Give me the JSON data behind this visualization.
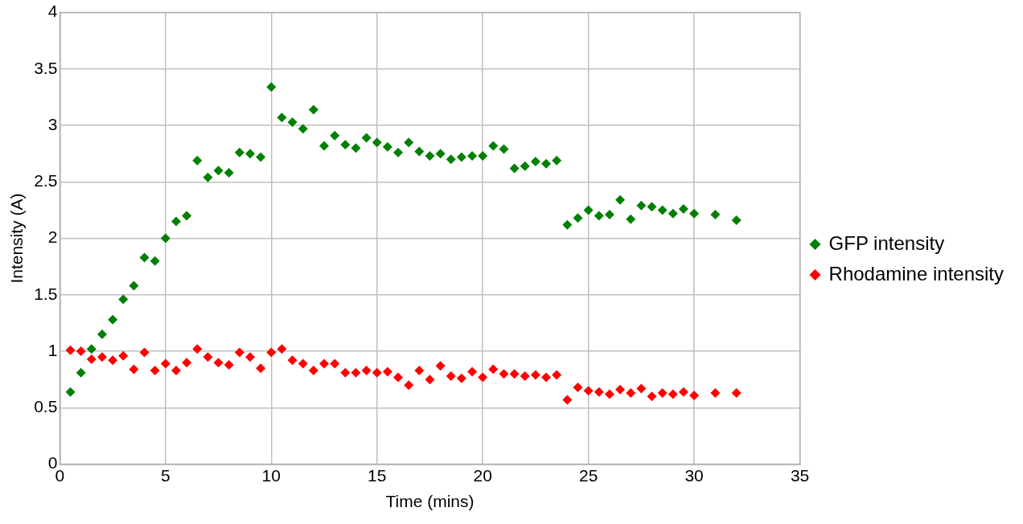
{
  "chart_data": {
    "type": "scatter",
    "xlabel": "Time (mins)",
    "ylabel": "Intensity (A)",
    "x": [
      0.5,
      1,
      1.5,
      2,
      2.5,
      3,
      3.5,
      4,
      4.5,
      5,
      5.5,
      6,
      6.5,
      7,
      7.5,
      8,
      8.5,
      9,
      9.5,
      10,
      10.5,
      11,
      11.5,
      12,
      12.5,
      13,
      13.5,
      14,
      14.5,
      15,
      15.5,
      16,
      16.5,
      17,
      17.5,
      18,
      18.5,
      19,
      19.5,
      20,
      20.5,
      21,
      21.5,
      22,
      22.5,
      23,
      23.5,
      24,
      24.5,
      25,
      25.5,
      26,
      26.5,
      27,
      27.5,
      28,
      28.5,
      29,
      29.5,
      30,
      31,
      32
    ],
    "series": [
      {
        "name": "GFP intensity",
        "color": "#008000",
        "values": [
          0.64,
          0.81,
          1.02,
          1.15,
          1.28,
          1.46,
          1.58,
          1.83,
          1.8,
          2.0,
          2.15,
          2.2,
          2.69,
          2.54,
          2.6,
          2.58,
          2.76,
          2.75,
          2.72,
          3.34,
          3.07,
          3.03,
          2.97,
          3.14,
          2.82,
          2.91,
          2.83,
          2.8,
          2.89,
          2.85,
          2.81,
          2.76,
          2.85,
          2.77,
          2.73,
          2.75,
          2.7,
          2.72,
          2.73,
          2.73,
          2.82,
          2.79,
          2.62,
          2.64,
          2.68,
          2.66,
          2.69,
          2.12,
          2.18,
          2.25,
          2.2,
          2.21,
          2.34,
          2.17,
          2.29,
          2.28,
          2.25,
          2.22,
          2.26,
          2.22,
          2.21,
          2.16
        ]
      },
      {
        "name": "Rhodamine intensity",
        "color": "#ff0000",
        "values": [
          1.01,
          1.0,
          0.93,
          0.95,
          0.92,
          0.96,
          0.84,
          0.99,
          0.83,
          0.89,
          0.83,
          0.9,
          1.02,
          0.95,
          0.9,
          0.88,
          0.99,
          0.95,
          0.85,
          0.99,
          1.02,
          0.92,
          0.89,
          0.83,
          0.89,
          0.89,
          0.81,
          0.81,
          0.83,
          0.81,
          0.82,
          0.77,
          0.7,
          0.83,
          0.75,
          0.87,
          0.78,
          0.76,
          0.82,
          0.77,
          0.84,
          0.8,
          0.8,
          0.78,
          0.79,
          0.77,
          0.79,
          0.57,
          0.68,
          0.65,
          0.64,
          0.62,
          0.66,
          0.63,
          0.67,
          0.6,
          0.63,
          0.62,
          0.64,
          0.61,
          0.63,
          0.63
        ]
      }
    ],
    "xlim": [
      0,
      35
    ],
    "xticks": [
      0,
      5,
      10,
      15,
      20,
      25,
      30,
      35
    ],
    "ylim": [
      0,
      4
    ],
    "yticks": [
      0,
      0.5,
      1,
      1.5,
      2,
      2.5,
      3,
      3.5,
      4
    ],
    "grid": true,
    "legend": "right",
    "marker": "diamond"
  }
}
